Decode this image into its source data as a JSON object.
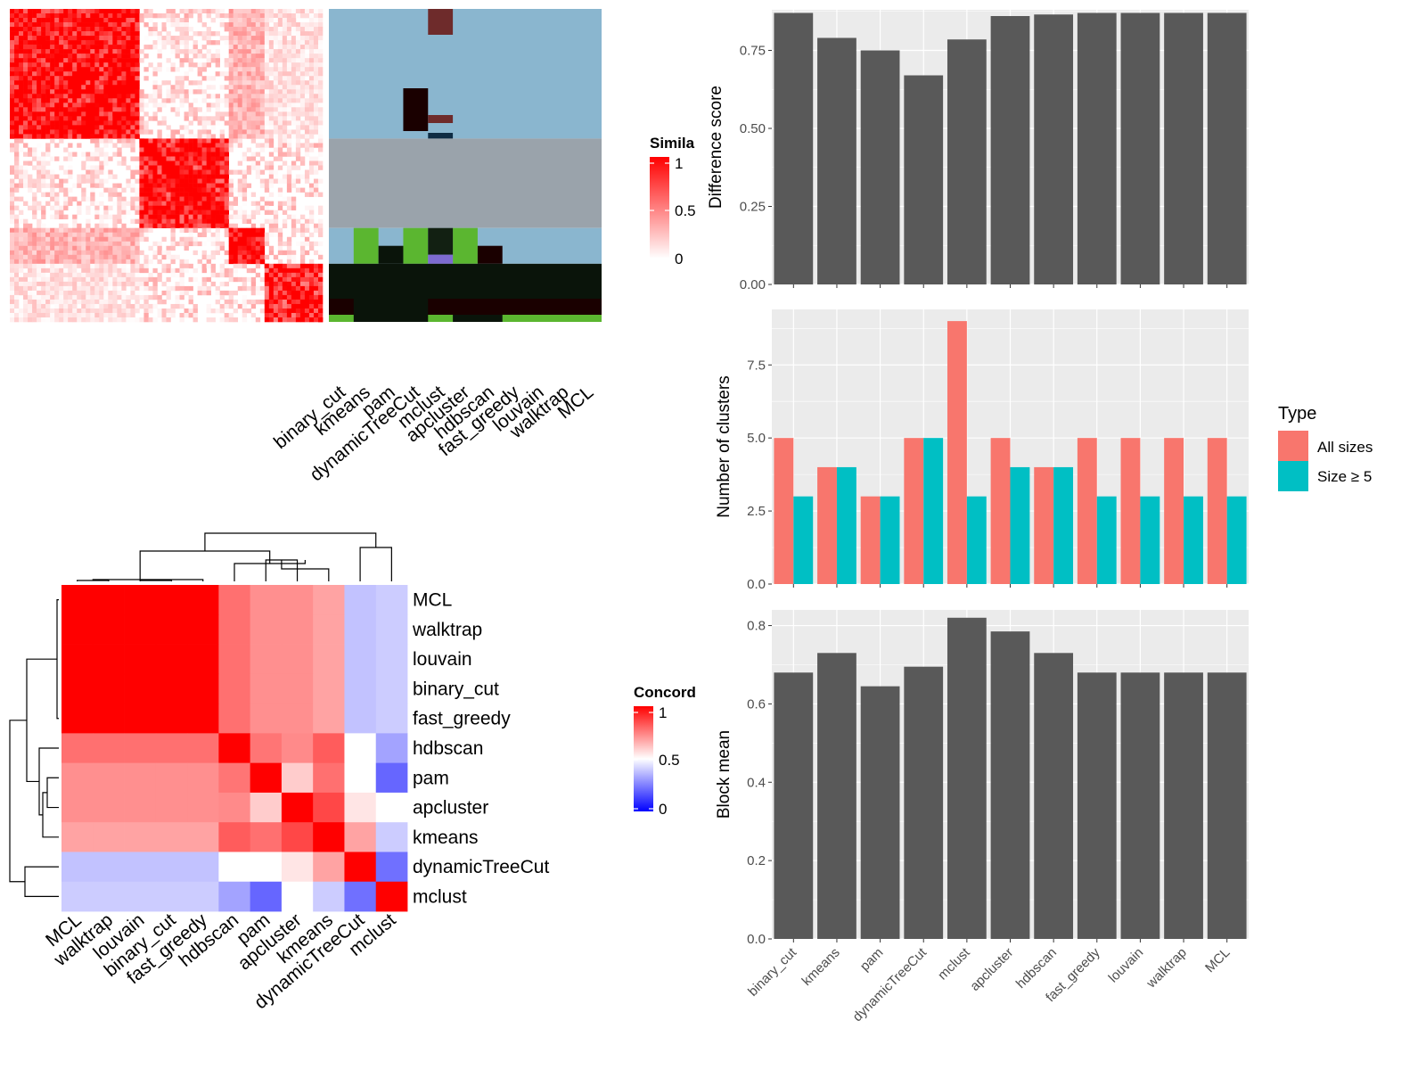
{
  "colors": {
    "red": "#ff0000",
    "mid_white": "#ffffff",
    "blue": "#0000ff",
    "bar_gray": "#595959",
    "panel_bg": "#ebebeb",
    "all_sizes": "#f8766d",
    "size_ge5": "#00bfc4"
  },
  "chart_data": [
    {
      "type": "heatmap",
      "name_hint": "similarity heatmap",
      "legend_title": "Simila",
      "legend_ticks": [
        "1",
        "0.5",
        "0"
      ],
      "column_labels": [
        "binary_cut",
        "kmeans",
        "pam",
        "dynamicTreeCut",
        "mclust",
        "apcluster",
        "hdbscan",
        "fast_greedy",
        "louvain",
        "walktrap",
        "MCL"
      ],
      "blocks": [
        {
          "rows": 29,
          "mean": 0.85
        },
        {
          "rows": 20,
          "mean": 0.8
        },
        {
          "rows": 8,
          "mean": 0.9
        },
        {
          "rows": 13,
          "mean": 0.75
        }
      ],
      "class_colors": [
        "#8ab6cf",
        "#9aa3ab",
        "#0a140a",
        "#5bb630",
        "#1a0000",
        "#6e2b2b",
        "#0e2c44",
        "#7d6bd0",
        "#122012"
      ]
    },
    {
      "type": "heatmap",
      "name_hint": "concordance heatmap",
      "legend_title": "Concord",
      "legend_ticks": [
        "1",
        "0.5",
        "0"
      ],
      "row_labels": [
        "MCL",
        "walktrap",
        "louvain",
        "binary_cut",
        "fast_greedy",
        "hdbscan",
        "pam",
        "apcluster",
        "kmeans",
        "dynamicTreeCut",
        "mclust"
      ],
      "column_labels": [
        "MCL",
        "walktrap",
        "louvain",
        "binary_cut",
        "fast_greedy",
        "hdbscan",
        "pam",
        "apcluster",
        "kmeans",
        "dynamicTreeCut",
        "mclust"
      ],
      "matrix": [
        [
          1,
          1,
          1,
          1,
          1,
          0.78,
          0.72,
          0.72,
          0.68,
          0.38,
          0.4
        ],
        [
          1,
          1,
          1,
          1,
          1,
          0.78,
          0.72,
          0.72,
          0.68,
          0.38,
          0.4
        ],
        [
          1,
          1,
          1,
          1,
          1,
          0.78,
          0.72,
          0.72,
          0.68,
          0.38,
          0.4
        ],
        [
          1,
          1,
          1,
          1,
          1,
          0.78,
          0.72,
          0.72,
          0.68,
          0.38,
          0.4
        ],
        [
          1,
          1,
          1,
          1,
          1,
          0.78,
          0.72,
          0.72,
          0.68,
          0.38,
          0.4
        ],
        [
          0.78,
          0.78,
          0.78,
          0.78,
          0.78,
          1,
          0.77,
          0.73,
          0.82,
          0.5,
          0.32
        ],
        [
          0.72,
          0.72,
          0.72,
          0.72,
          0.72,
          0.77,
          1,
          0.6,
          0.78,
          0.5,
          0.2
        ],
        [
          0.72,
          0.72,
          0.72,
          0.72,
          0.72,
          0.73,
          0.6,
          1,
          0.86,
          0.55,
          0.5
        ],
        [
          0.68,
          0.68,
          0.68,
          0.68,
          0.68,
          0.82,
          0.78,
          0.86,
          1,
          0.68,
          0.4
        ],
        [
          0.38,
          0.38,
          0.38,
          0.38,
          0.38,
          0.5,
          0.5,
          0.55,
          0.68,
          1,
          0.22
        ],
        [
          0.4,
          0.4,
          0.4,
          0.4,
          0.4,
          0.32,
          0.2,
          0.5,
          0.4,
          0.22,
          1
        ]
      ]
    },
    {
      "type": "bar",
      "ylabel": "Difference score",
      "ylim": [
        0,
        0.88
      ],
      "yticks": [
        "0.00",
        "0.25",
        "0.50",
        "0.75"
      ],
      "categories": [
        "binary_cut",
        "kmeans",
        "pam",
        "dynamicTreeCut",
        "mclust",
        "apcluster",
        "hdbscan",
        "fast_greedy",
        "louvain",
        "walktrap",
        "MCL"
      ],
      "values": [
        0.87,
        0.79,
        0.75,
        0.67,
        0.785,
        0.86,
        0.865,
        0.87,
        0.87,
        0.87,
        0.87
      ]
    },
    {
      "type": "bar",
      "ylabel": "Number of clusters",
      "ylim": [
        0,
        9.4
      ],
      "yticks": [
        "0.0",
        "2.5",
        "5.0",
        "7.5"
      ],
      "categories": [
        "binary_cut",
        "kmeans",
        "pam",
        "dynamicTreeCut",
        "mclust",
        "apcluster",
        "hdbscan",
        "fast_greedy",
        "louvain",
        "walktrap",
        "MCL"
      ],
      "legend_title": "Type",
      "series": [
        {
          "name": "All sizes",
          "values": [
            5,
            4,
            3,
            5,
            9,
            5,
            4,
            5,
            5,
            5,
            5
          ]
        },
        {
          "name": "Size ≥ 5",
          "values": [
            3,
            4,
            3,
            5,
            3,
            4,
            4,
            3,
            3,
            3,
            3
          ]
        }
      ]
    },
    {
      "type": "bar",
      "ylabel": "Block mean",
      "ylim": [
        0,
        0.84
      ],
      "yticks": [
        "0.0",
        "0.2",
        "0.4",
        "0.6",
        "0.8"
      ],
      "categories": [
        "binary_cut",
        "kmeans",
        "pam",
        "dynamicTreeCut",
        "mclust",
        "apcluster",
        "hdbscan",
        "fast_greedy",
        "louvain",
        "walktrap",
        "MCL"
      ],
      "values": [
        0.68,
        0.73,
        0.645,
        0.695,
        0.82,
        0.785,
        0.73,
        0.68,
        0.68,
        0.68,
        0.68
      ]
    }
  ]
}
